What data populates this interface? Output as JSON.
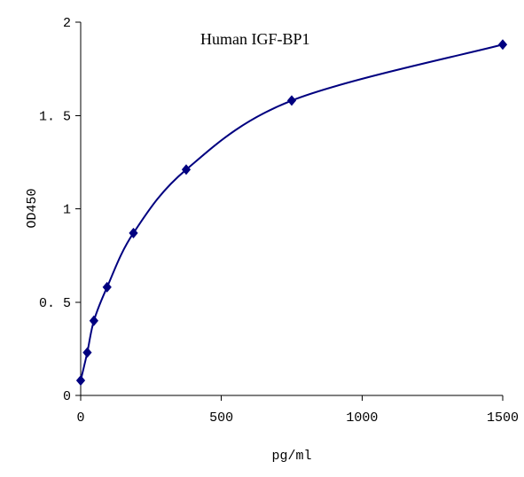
{
  "chart_data": {
    "type": "line",
    "title": "Human IGF-BP1",
    "xlabel": "pg/ml",
    "ylabel": "OD450",
    "xlim": [
      0,
      1500
    ],
    "ylim": [
      0,
      2
    ],
    "xticks": [
      0,
      500,
      1000,
      1500
    ],
    "xtick_labels": [
      "0",
      "500",
      "1000",
      "1500"
    ],
    "yticks": [
      0,
      0.5,
      1,
      1.5,
      2
    ],
    "ytick_labels": [
      "0",
      "0. 5",
      "1",
      "1. 5",
      "2"
    ],
    "grid": false,
    "series": [
      {
        "color": "#000080",
        "marker": "diamond",
        "x": [
          0,
          23.4,
          46.9,
          93.8,
          187.5,
          375,
          750,
          1500
        ],
        "y": [
          0.08,
          0.23,
          0.4,
          0.58,
          0.87,
          1.21,
          1.58,
          1.88
        ]
      }
    ]
  }
}
